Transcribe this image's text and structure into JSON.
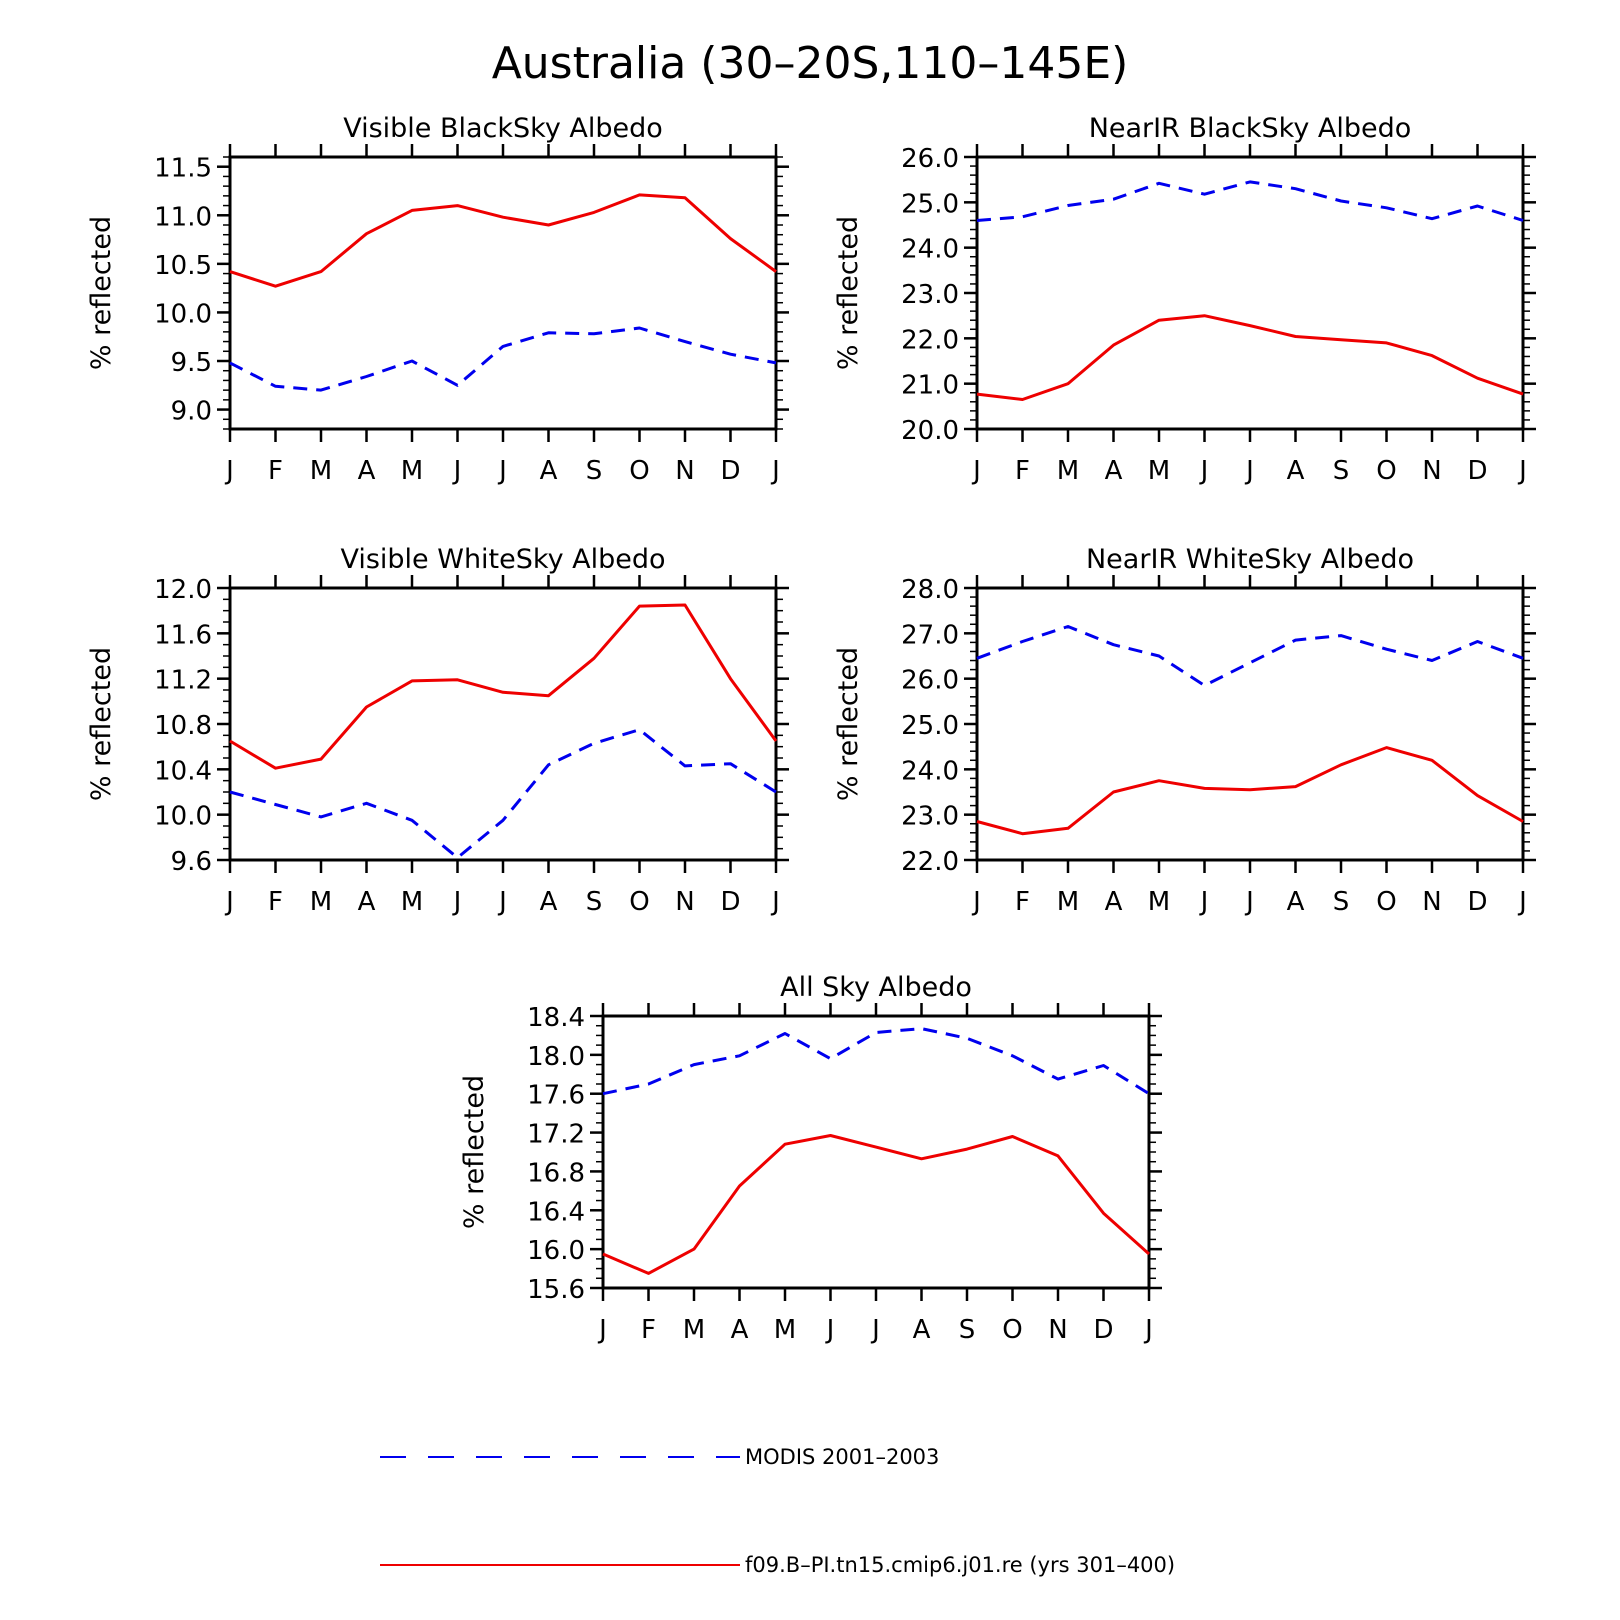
{
  "figure": {
    "title": "Australia (30–20S,110–145E)"
  },
  "legend": {
    "entries": [
      {
        "label": "MODIS 2001–2003",
        "color": "#0000ee",
        "dash": "dashed"
      },
      {
        "label": "f09.B–PI.tn15.cmip6.j01.re (yrs 301–400)",
        "color": "#ee0000",
        "dash": "solid"
      }
    ]
  },
  "chart_data": [
    {
      "type": "line",
      "title": "Visible BlackSky Albedo",
      "ylabel": "% reflected",
      "xlabel": "",
      "categories": [
        "J",
        "F",
        "M",
        "A",
        "M",
        "J",
        "J",
        "A",
        "S",
        "O",
        "N",
        "D",
        "J"
      ],
      "ylim": [
        8.8,
        11.6
      ],
      "yticks": [
        9.0,
        9.5,
        10.0,
        10.5,
        11.0,
        11.5
      ],
      "ytick_labels": [
        "9.0",
        "9.5",
        "10.0",
        "10.5",
        "11.0",
        "11.5"
      ],
      "minor_y_step": 0.1,
      "series": [
        {
          "name": "MODIS 2001–2003",
          "color": "#0000ee",
          "dash": "dashed",
          "values": [
            9.48,
            9.24,
            9.2,
            9.34,
            9.5,
            9.25,
            9.65,
            9.79,
            9.78,
            9.84,
            9.7,
            9.57,
            9.48
          ]
        },
        {
          "name": "f09.B–PI.tn15.cmip6.j01.re (yrs 301–400)",
          "color": "#ee0000",
          "dash": "solid",
          "values": [
            10.42,
            10.27,
            10.42,
            10.81,
            11.05,
            11.1,
            10.98,
            10.9,
            11.03,
            11.21,
            11.18,
            10.76,
            10.42
          ]
        }
      ]
    },
    {
      "type": "line",
      "title": "NearIR BlackSky Albedo",
      "ylabel": "% reflected",
      "xlabel": "",
      "categories": [
        "J",
        "F",
        "M",
        "A",
        "M",
        "J",
        "J",
        "A",
        "S",
        "O",
        "N",
        "D",
        "J"
      ],
      "ylim": [
        20.0,
        26.0
      ],
      "yticks": [
        20.0,
        21.0,
        22.0,
        23.0,
        24.0,
        25.0,
        26.0
      ],
      "ytick_labels": [
        "20.0",
        "21.0",
        "22.0",
        "23.0",
        "24.0",
        "25.0",
        "26.0"
      ],
      "minor_y_step": 0.2,
      "series": [
        {
          "name": "MODIS 2001–2003",
          "color": "#0000ee",
          "dash": "dashed",
          "values": [
            24.6,
            24.68,
            24.93,
            25.07,
            25.42,
            25.18,
            25.45,
            25.3,
            25.03,
            24.88,
            24.64,
            24.92,
            24.6
          ]
        },
        {
          "name": "f09.B–PI.tn15.cmip6.j01.re (yrs 301–400)",
          "color": "#ee0000",
          "dash": "solid",
          "values": [
            20.77,
            20.65,
            21.0,
            21.85,
            22.4,
            22.5,
            22.28,
            22.04,
            21.97,
            21.9,
            21.62,
            21.12,
            20.77
          ]
        }
      ]
    },
    {
      "type": "line",
      "title": "Visible WhiteSky Albedo",
      "ylabel": "% reflected",
      "xlabel": "",
      "categories": [
        "J",
        "F",
        "M",
        "A",
        "M",
        "J",
        "J",
        "A",
        "S",
        "O",
        "N",
        "D",
        "J"
      ],
      "ylim": [
        9.6,
        12.0
      ],
      "yticks": [
        9.6,
        10.0,
        10.4,
        10.8,
        11.2,
        11.6,
        12.0
      ],
      "ytick_labels": [
        "9.6",
        "10.0",
        "10.4",
        "10.8",
        "11.2",
        "11.6",
        "12.0"
      ],
      "minor_y_step": 0.1,
      "series": [
        {
          "name": "MODIS 2001–2003",
          "color": "#0000ee",
          "dash": "dashed",
          "values": [
            10.2,
            10.09,
            9.98,
            10.1,
            9.95,
            9.62,
            9.95,
            10.44,
            10.63,
            10.75,
            10.43,
            10.45,
            10.2
          ]
        },
        {
          "name": "f09.B–PI.tn15.cmip6.j01.re (yrs 301–400)",
          "color": "#ee0000",
          "dash": "solid",
          "values": [
            10.65,
            10.41,
            10.49,
            10.95,
            11.18,
            11.19,
            11.08,
            11.05,
            11.38,
            11.84,
            11.85,
            11.2,
            10.65
          ]
        }
      ]
    },
    {
      "type": "line",
      "title": "NearIR WhiteSky Albedo",
      "ylabel": "% reflected",
      "xlabel": "",
      "categories": [
        "J",
        "F",
        "M",
        "A",
        "M",
        "J",
        "J",
        "A",
        "S",
        "O",
        "N",
        "D",
        "J"
      ],
      "ylim": [
        22.0,
        28.0
      ],
      "yticks": [
        22.0,
        23.0,
        24.0,
        25.0,
        26.0,
        27.0,
        28.0
      ],
      "ytick_labels": [
        "22.0",
        "23.0",
        "24.0",
        "25.0",
        "26.0",
        "27.0",
        "28.0"
      ],
      "minor_y_step": 0.2,
      "series": [
        {
          "name": "MODIS 2001–2003",
          "color": "#0000ee",
          "dash": "dashed",
          "values": [
            26.45,
            26.82,
            27.15,
            26.75,
            26.5,
            25.85,
            26.35,
            26.85,
            26.95,
            26.65,
            26.4,
            26.82,
            26.45
          ]
        },
        {
          "name": "f09.B–PI.tn15.cmip6.j01.re (yrs 301–400)",
          "color": "#ee0000",
          "dash": "solid",
          "values": [
            22.85,
            22.58,
            22.7,
            23.5,
            23.75,
            23.58,
            23.55,
            23.62,
            24.1,
            24.48,
            24.2,
            23.42,
            22.85
          ]
        }
      ]
    },
    {
      "type": "line",
      "title": "All Sky Albedo",
      "ylabel": "% reflected",
      "xlabel": "",
      "categories": [
        "J",
        "F",
        "M",
        "A",
        "M",
        "J",
        "J",
        "A",
        "S",
        "O",
        "N",
        "D",
        "J"
      ],
      "ylim": [
        15.6,
        18.4
      ],
      "yticks": [
        15.6,
        16.0,
        16.4,
        16.8,
        17.2,
        17.6,
        18.0,
        18.4
      ],
      "ytick_labels": [
        "15.6",
        "16.0",
        "16.4",
        "16.8",
        "17.2",
        "17.6",
        "18.0",
        "18.4"
      ],
      "minor_y_step": 0.1,
      "series": [
        {
          "name": "MODIS 2001–2003",
          "color": "#0000ee",
          "dash": "dashed",
          "values": [
            17.6,
            17.7,
            17.9,
            17.99,
            18.22,
            17.96,
            18.23,
            18.27,
            18.17,
            17.99,
            17.75,
            17.89,
            17.6
          ]
        },
        {
          "name": "f09.B–PI.tn15.cmip6.j01.re (yrs 301–400)",
          "color": "#ee0000",
          "dash": "solid",
          "values": [
            15.95,
            15.75,
            16.0,
            16.65,
            17.08,
            17.17,
            17.05,
            16.93,
            17.03,
            17.16,
            16.96,
            16.37,
            15.95
          ]
        }
      ]
    }
  ]
}
